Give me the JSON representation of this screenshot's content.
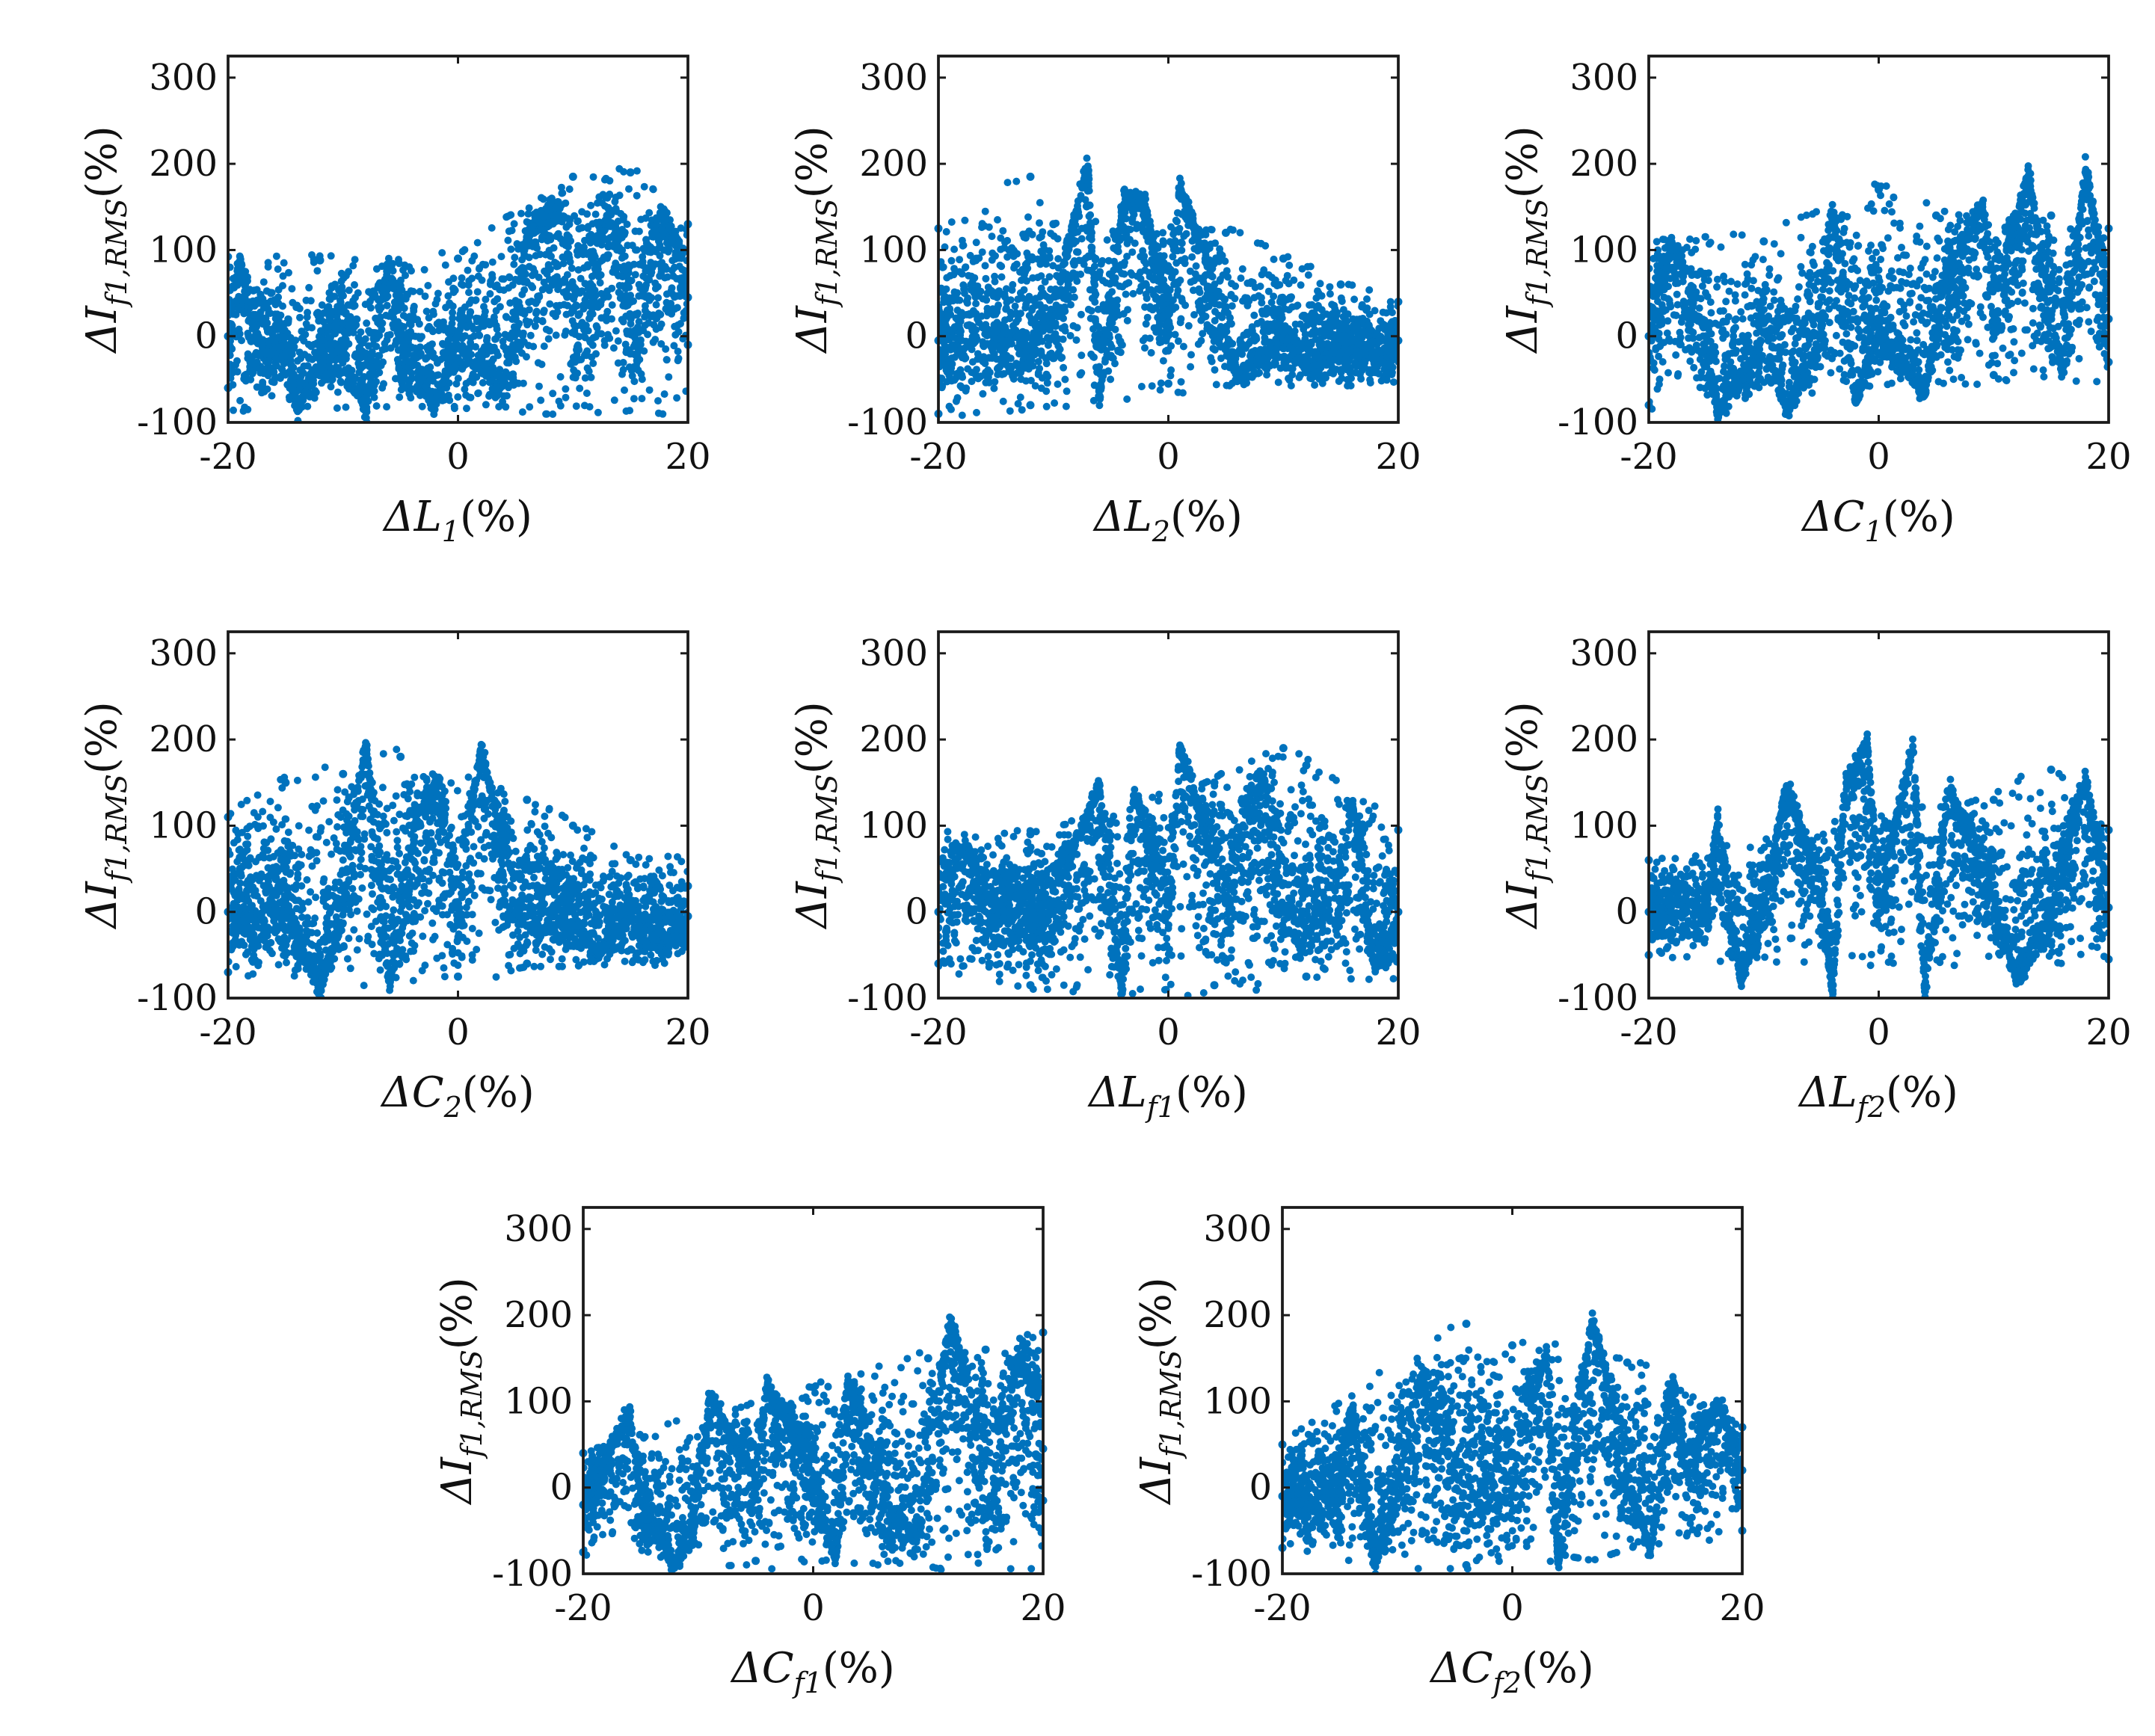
{
  "figure": {
    "marker_color": "#0072BD",
    "panel_count": 8
  },
  "chart_data": [
    {
      "type": "scatter",
      "ylabel": {
        "base": "ΔI",
        "sub": "f1,RMS",
        "suffix": "(%)"
      },
      "xlabel": {
        "base": "ΔL",
        "sub": "1",
        "suffix": "(%)"
      },
      "xlim": [
        -20,
        20
      ],
      "ylim": [
        -100,
        325
      ],
      "xticks": [
        "-20",
        "0",
        "20"
      ],
      "yticks": [
        "-100",
        "0",
        "100",
        "200",
        "300"
      ],
      "series": [
        {
          "values": [
            [
              -20,
              0
            ],
            [
              -18,
              -5
            ],
            [
              -15,
              -10
            ],
            [
              -12,
              -12
            ],
            [
              -10,
              -10
            ],
            [
              -5,
              -5
            ],
            [
              0,
              5
            ],
            [
              5,
              20
            ],
            [
              10,
              30
            ],
            [
              15,
              40
            ],
            [
              20,
              45
            ],
            [
              -19,
              85
            ],
            [
              -12,
              88
            ],
            [
              -6,
              85
            ],
            [
              0,
              90
            ],
            [
              6,
              115
            ],
            [
              9,
              135
            ],
            [
              10,
              185
            ],
            [
              13,
              135
            ],
            [
              15,
              190
            ],
            [
              18,
              135
            ],
            [
              20,
              130
            ],
            [
              -20,
              -60
            ],
            [
              -14,
              -85
            ],
            [
              -8,
              -85
            ],
            [
              -2,
              -75
            ],
            [
              4,
              -50
            ],
            [
              10,
              -30
            ],
            [
              15,
              -20
            ],
            [
              20,
              -10
            ]
          ]
        }
      ]
    },
    {
      "type": "scatter",
      "ylabel": {
        "base": "ΔI",
        "sub": "f1,RMS",
        "suffix": "(%)"
      },
      "xlabel": {
        "base": "ΔL",
        "sub": "2",
        "suffix": "(%)"
      },
      "xlim": [
        -20,
        20
      ],
      "ylim": [
        -100,
        325
      ],
      "xticks": [
        "-20",
        "0",
        "20"
      ],
      "yticks": [
        "-100",
        "0",
        "100",
        "200",
        "300"
      ],
      "series": [
        {
          "values": [
            [
              -20,
              -5
            ],
            [
              -15,
              5
            ],
            [
              -10,
              15
            ],
            [
              -5,
              20
            ],
            [
              0,
              15
            ],
            [
              5,
              10
            ],
            [
              10,
              5
            ],
            [
              15,
              0
            ],
            [
              20,
              -5
            ],
            [
              -20,
              125
            ],
            [
              -12,
              185
            ],
            [
              -10,
              130
            ],
            [
              -8,
              140
            ],
            [
              -7,
              190
            ],
            [
              -4,
              150
            ],
            [
              -2,
              145
            ],
            [
              1,
              170
            ],
            [
              5,
              120
            ],
            [
              10,
              90
            ],
            [
              15,
              60
            ],
            [
              20,
              40
            ],
            [
              -20,
              -90
            ],
            [
              -12,
              -80
            ],
            [
              -6,
              -70
            ],
            [
              0,
              -55
            ],
            [
              6,
              -40
            ],
            [
              12,
              -30
            ],
            [
              18,
              -25
            ]
          ]
        }
      ]
    },
    {
      "type": "scatter",
      "ylabel": {
        "base": "ΔI",
        "sub": "f1,RMS",
        "suffix": "(%)"
      },
      "xlabel": {
        "base": "ΔC",
        "sub": "1",
        "suffix": "(%)"
      },
      "xlim": [
        -20,
        20
      ],
      "ylim": [
        -100,
        325
      ],
      "xticks": [
        "-20",
        "0",
        "20"
      ],
      "yticks": [
        "-100",
        "0",
        "100",
        "200",
        "300"
      ],
      "series": [
        {
          "values": [
            [
              -20,
              0
            ],
            [
              -15,
              0
            ],
            [
              -10,
              5
            ],
            [
              -5,
              10
            ],
            [
              0,
              15
            ],
            [
              5,
              20
            ],
            [
              10,
              25
            ],
            [
              15,
              25
            ],
            [
              20,
              20
            ],
            [
              -18,
              100
            ],
            [
              -10,
              110
            ],
            [
              -4,
              135
            ],
            [
              0,
              170
            ],
            [
              5,
              140
            ],
            [
              9,
              150
            ],
            [
              13,
              185
            ],
            [
              15,
              140
            ],
            [
              18,
              190
            ],
            [
              20,
              125
            ],
            [
              -20,
              -80
            ],
            [
              -14,
              -85
            ],
            [
              -8,
              -80
            ],
            [
              -2,
              -70
            ],
            [
              4,
              -60
            ],
            [
              10,
              -45
            ],
            [
              16,
              -35
            ],
            [
              20,
              -30
            ]
          ]
        }
      ]
    },
    {
      "type": "scatter",
      "ylabel": {
        "base": "ΔI",
        "sub": "f1,RMS",
        "suffix": "(%)"
      },
      "xlabel": {
        "base": "ΔC",
        "sub": "2",
        "suffix": "(%)"
      },
      "xlim": [
        -20,
        20
      ],
      "ylim": [
        -100,
        325
      ],
      "xticks": [
        "-20",
        "0",
        "20"
      ],
      "yticks": [
        "-100",
        "0",
        "100",
        "200",
        "300"
      ],
      "series": [
        {
          "values": [
            [
              -20,
              0
            ],
            [
              -15,
              10
            ],
            [
              -10,
              15
            ],
            [
              -5,
              15
            ],
            [
              0,
              10
            ],
            [
              5,
              10
            ],
            [
              10,
              5
            ],
            [
              15,
              0
            ],
            [
              20,
              -5
            ],
            [
              -20,
              110
            ],
            [
              -15,
              150
            ],
            [
              -10,
              160
            ],
            [
              -8,
              190
            ],
            [
              -5,
              180
            ],
            [
              -2,
              140
            ],
            [
              2,
              185
            ],
            [
              6,
              130
            ],
            [
              10,
              100
            ],
            [
              15,
              60
            ],
            [
              20,
              30
            ],
            [
              -20,
              -70
            ],
            [
              -12,
              -85
            ],
            [
              -6,
              -80
            ],
            [
              0,
              -75
            ],
            [
              6,
              -60
            ],
            [
              12,
              -45
            ],
            [
              18,
              -30
            ]
          ]
        }
      ]
    },
    {
      "type": "scatter",
      "ylabel": {
        "base": "ΔI",
        "sub": "f1,RMS",
        "suffix": "(%)"
      },
      "xlabel": {
        "base": "ΔL",
        "sub": "f1",
        "suffix": "(%)"
      },
      "xlim": [
        -20,
        20
      ],
      "ylim": [
        -100,
        325
      ],
      "xticks": [
        "-20",
        "0",
        "20"
      ],
      "yticks": [
        "-100",
        "0",
        "100",
        "200",
        "300"
      ],
      "series": [
        {
          "values": [
            [
              -20,
              0
            ],
            [
              -15,
              5
            ],
            [
              -10,
              10
            ],
            [
              -5,
              10
            ],
            [
              0,
              10
            ],
            [
              5,
              10
            ],
            [
              10,
              5
            ],
            [
              15,
              5
            ],
            [
              20,
              0
            ],
            [
              -18,
              70
            ],
            [
              -12,
              90
            ],
            [
              -6,
              140
            ],
            [
              -3,
              135
            ],
            [
              1,
              185
            ],
            [
              4,
              150
            ],
            [
              8,
              140
            ],
            [
              10,
              190
            ],
            [
              12,
              170
            ],
            [
              16,
              125
            ],
            [
              20,
              95
            ],
            [
              -20,
              -60
            ],
            [
              -12,
              -85
            ],
            [
              -4,
              -90
            ],
            [
              4,
              -85
            ],
            [
              12,
              -75
            ],
            [
              18,
              -60
            ]
          ]
        }
      ]
    },
    {
      "type": "scatter",
      "ylabel": {
        "base": "ΔI",
        "sub": "f1,RMS",
        "suffix": "(%)"
      },
      "xlabel": {
        "base": "ΔL",
        "sub": "f2",
        "suffix": "(%)"
      },
      "xlim": [
        -20,
        20
      ],
      "ylim": [
        -100,
        325
      ],
      "xticks": [
        "-20",
        "0",
        "20"
      ],
      "yticks": [
        "-100",
        "0",
        "100",
        "200",
        "300"
      ],
      "series": [
        {
          "values": [
            [
              -20,
              0
            ],
            [
              -15,
              5
            ],
            [
              -10,
              10
            ],
            [
              -5,
              15
            ],
            [
              0,
              15
            ],
            [
              5,
              15
            ],
            [
              10,
              15
            ],
            [
              15,
              10
            ],
            [
              20,
              5
            ],
            [
              -20,
              60
            ],
            [
              -14,
              100
            ],
            [
              -8,
              140
            ],
            [
              -3,
              135
            ],
            [
              -1,
              190
            ],
            [
              3,
              185
            ],
            [
              6,
              140
            ],
            [
              10,
              130
            ],
            [
              15,
              165
            ],
            [
              18,
              150
            ],
            [
              20,
              95
            ],
            [
              -20,
              -50
            ],
            [
              -12,
              -75
            ],
            [
              -4,
              -85
            ],
            [
              4,
              -85
            ],
            [
              12,
              -75
            ],
            [
              20,
              -55
            ]
          ]
        }
      ]
    },
    {
      "type": "scatter",
      "ylabel": {
        "base": "ΔI",
        "sub": "f1,RMS",
        "suffix": "(%)"
      },
      "xlabel": {
        "base": "ΔC",
        "sub": "f1",
        "suffix": "(%)"
      },
      "xlim": [
        -20,
        20
      ],
      "ylim": [
        -100,
        325
      ],
      "xticks": [
        "-20",
        "0",
        "20"
      ],
      "yticks": [
        "-100",
        "0",
        "100",
        "200",
        "300"
      ],
      "series": [
        {
          "values": [
            [
              -20,
              -20
            ],
            [
              -15,
              -15
            ],
            [
              -10,
              -10
            ],
            [
              -5,
              0
            ],
            [
              0,
              10
            ],
            [
              5,
              20
            ],
            [
              10,
              30
            ],
            [
              15,
              40
            ],
            [
              20,
              45
            ],
            [
              -20,
              40
            ],
            [
              -16,
              80
            ],
            [
              -9,
              100
            ],
            [
              -4,
              110
            ],
            [
              3,
              120
            ],
            [
              10,
              150
            ],
            [
              12,
              190
            ],
            [
              15,
              160
            ],
            [
              18,
              150
            ],
            [
              20,
              180
            ],
            [
              -20,
              -75
            ],
            [
              -12,
              -85
            ],
            [
              -5,
              -85
            ],
            [
              2,
              -75
            ],
            [
              9,
              -55
            ],
            [
              15,
              -35
            ],
            [
              20,
              -15
            ]
          ]
        }
      ]
    },
    {
      "type": "scatter",
      "ylabel": {
        "base": "ΔI",
        "sub": "f1,RMS",
        "suffix": "(%)"
      },
      "xlabel": {
        "base": "ΔC",
        "sub": "f2",
        "suffix": "(%)"
      },
      "xlim": [
        -20,
        20
      ],
      "ylim": [
        -100,
        325
      ],
      "xticks": [
        "-20",
        "0",
        "20"
      ],
      "yticks": [
        "-100",
        "0",
        "100",
        "200",
        "300"
      ],
      "series": [
        {
          "values": [
            [
              -20,
              -10
            ],
            [
              -15,
              -5
            ],
            [
              -10,
              5
            ],
            [
              -5,
              15
            ],
            [
              0,
              20
            ],
            [
              5,
              25
            ],
            [
              10,
              25
            ],
            [
              15,
              25
            ],
            [
              20,
              20
            ],
            [
              -20,
              50
            ],
            [
              -14,
              90
            ],
            [
              -8,
              110
            ],
            [
              -4,
              190
            ],
            [
              0,
              165
            ],
            [
              3,
              150
            ],
            [
              7,
              185
            ],
            [
              10,
              145
            ],
            [
              14,
              120
            ],
            [
              18,
              90
            ],
            [
              20,
              70
            ],
            [
              -20,
              -70
            ],
            [
              -12,
              -85
            ],
            [
              -4,
              -90
            ],
            [
              4,
              -85
            ],
            [
              12,
              -70
            ],
            [
              20,
              -50
            ]
          ]
        }
      ]
    }
  ]
}
